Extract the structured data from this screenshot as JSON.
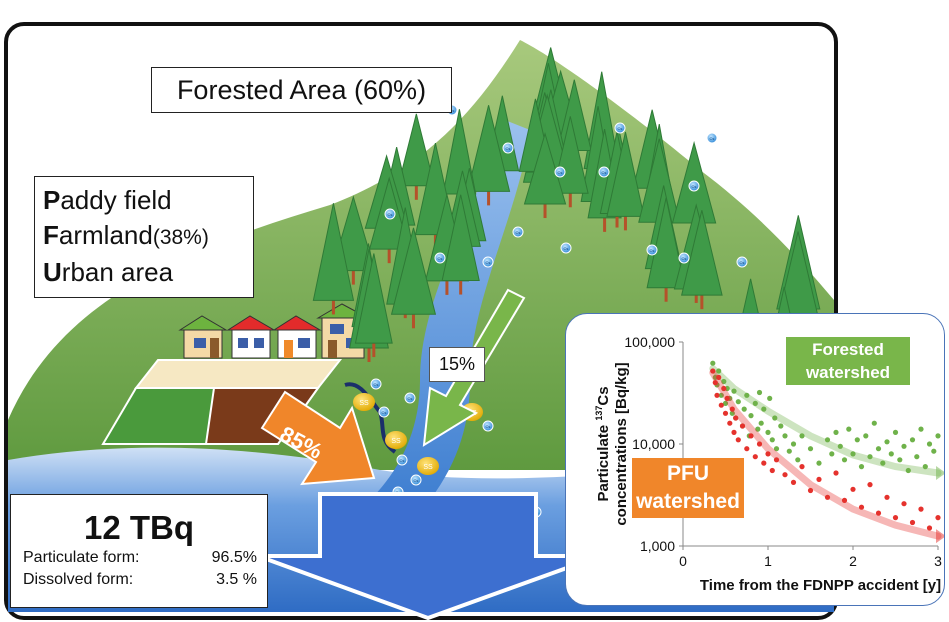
{
  "labels": {
    "forested_area": "Forested Area (60%)",
    "pfu": {
      "line1_initial": "P",
      "line1_rest": "addy field",
      "line2_initial": "F",
      "line2_rest": "armland",
      "line2_pct": "(38%)",
      "line3_initial": "U",
      "line3_rest": "rban area"
    },
    "pct_forest_flow": "15%",
    "pct_pfu_flow": "85%",
    "ss_label": "SS",
    "cs_label": "Cs"
  },
  "total": {
    "value": "12 TBq",
    "particulate_label": "Particulate form:",
    "particulate_value": "96.5%",
    "dissolved_label": "Dissolved form:",
    "dissolved_value": "3.5 %"
  },
  "colors": {
    "forest_tag": "#79b64a",
    "pfu_tag": "#f0862a",
    "water": "#3f7fd1",
    "hill": "#7cab52",
    "tree": "#3f9a48"
  },
  "chart_data": {
    "type": "scatter",
    "xlabel": "Time from the FDNPP accident [y]",
    "ylabel": "Particulate 137Cs concentrations [Bq/kg]",
    "ylabel_line1_pre": "Particulate ",
    "ylabel_sup": "137",
    "ylabel_line1_post": "Cs",
    "ylabel_line2": "concentrations [Bq/kg]",
    "x_ticks": [
      "0",
      "1",
      "2",
      "3"
    ],
    "y_ticks": [
      "1,000",
      "10,000",
      "100,000"
    ],
    "xlim": [
      0,
      3
    ],
    "ylim": [
      1000,
      100000
    ],
    "log_y": true,
    "series": [
      {
        "name": "Forested watershed",
        "name_line1": "Forested",
        "name_line2": "watershed",
        "color": "#6fb24a",
        "trend": [
          [
            0.35,
            55000
          ],
          [
            0.6,
            35000
          ],
          [
            1.0,
            21000
          ],
          [
            1.5,
            12000
          ],
          [
            2.0,
            7800
          ],
          [
            2.5,
            6000
          ],
          [
            3.0,
            5200
          ]
        ],
        "points": [
          [
            0.35,
            62000
          ],
          [
            0.38,
            45000
          ],
          [
            0.4,
            38000
          ],
          [
            0.42,
            52000
          ],
          [
            0.45,
            30000
          ],
          [
            0.48,
            41000
          ],
          [
            0.5,
            25000
          ],
          [
            0.52,
            35000
          ],
          [
            0.55,
            28000
          ],
          [
            0.58,
            20000
          ],
          [
            0.6,
            33000
          ],
          [
            0.62,
            18000
          ],
          [
            0.65,
            26000
          ],
          [
            0.7,
            15000
          ],
          [
            0.72,
            22000
          ],
          [
            0.75,
            30000
          ],
          [
            0.78,
            12000
          ],
          [
            0.8,
            19000
          ],
          [
            0.85,
            25000
          ],
          [
            0.88,
            14000
          ],
          [
            0.9,
            32000
          ],
          [
            0.92,
            16000
          ],
          [
            0.95,
            22000
          ],
          [
            1.0,
            13000
          ],
          [
            1.02,
            28000
          ],
          [
            1.05,
            11000
          ],
          [
            1.08,
            18000
          ],
          [
            1.1,
            9000
          ],
          [
            1.15,
            15000
          ],
          [
            1.2,
            12000
          ],
          [
            1.25,
            8500
          ],
          [
            1.3,
            10000
          ],
          [
            1.35,
            7000
          ],
          [
            1.4,
            12000
          ],
          [
            1.5,
            9000
          ],
          [
            1.6,
            6500
          ],
          [
            1.7,
            11000
          ],
          [
            1.75,
            8000
          ],
          [
            1.8,
            13000
          ],
          [
            1.85,
            9500
          ],
          [
            1.9,
            7000
          ],
          [
            1.95,
            14000
          ],
          [
            2.0,
            8000
          ],
          [
            2.05,
            11000
          ],
          [
            2.1,
            6000
          ],
          [
            2.15,
            12000
          ],
          [
            2.2,
            7500
          ],
          [
            2.25,
            16000
          ],
          [
            2.3,
            9000
          ],
          [
            2.35,
            6500
          ],
          [
            2.4,
            10500
          ],
          [
            2.45,
            8000
          ],
          [
            2.5,
            13000
          ],
          [
            2.55,
            7000
          ],
          [
            2.6,
            9500
          ],
          [
            2.65,
            5500
          ],
          [
            2.7,
            11000
          ],
          [
            2.75,
            7500
          ],
          [
            2.8,
            14000
          ],
          [
            2.85,
            6000
          ],
          [
            2.9,
            10000
          ],
          [
            2.95,
            8500
          ],
          [
            3.0,
            12000
          ]
        ]
      },
      {
        "name": "PFU watershed",
        "name_line1": "PFU",
        "name_line2": "watershed",
        "color": "#e5322d",
        "trend": [
          [
            0.35,
            50000
          ],
          [
            0.6,
            22000
          ],
          [
            1.0,
            9000
          ],
          [
            1.5,
            4000
          ],
          [
            2.0,
            2300
          ],
          [
            2.5,
            1600
          ],
          [
            3.0,
            1250
          ]
        ],
        "points": [
          [
            0.35,
            52000
          ],
          [
            0.38,
            40000
          ],
          [
            0.4,
            30000
          ],
          [
            0.42,
            45000
          ],
          [
            0.45,
            24000
          ],
          [
            0.48,
            35000
          ],
          [
            0.5,
            20000
          ],
          [
            0.52,
            28000
          ],
          [
            0.55,
            16000
          ],
          [
            0.58,
            22000
          ],
          [
            0.6,
            13000
          ],
          [
            0.62,
            18000
          ],
          [
            0.65,
            11000
          ],
          [
            0.7,
            15000
          ],
          [
            0.75,
            9000
          ],
          [
            0.8,
            12000
          ],
          [
            0.85,
            7500
          ],
          [
            0.9,
            10000
          ],
          [
            0.95,
            6500
          ],
          [
            1.0,
            8000
          ],
          [
            1.05,
            5500
          ],
          [
            1.1,
            7000
          ],
          [
            1.2,
            5000
          ],
          [
            1.3,
            4200
          ],
          [
            1.4,
            6000
          ],
          [
            1.5,
            3500
          ],
          [
            1.6,
            4500
          ],
          [
            1.7,
            3000
          ],
          [
            1.8,
            5200
          ],
          [
            1.9,
            2800
          ],
          [
            2.0,
            3600
          ],
          [
            2.1,
            2400
          ],
          [
            2.2,
            4000
          ],
          [
            2.3,
            2100
          ],
          [
            2.4,
            3000
          ],
          [
            2.5,
            1900
          ],
          [
            2.6,
            2600
          ],
          [
            2.7,
            1700
          ],
          [
            2.8,
            2300
          ],
          [
            2.9,
            1500
          ],
          [
            3.0,
            1900
          ]
        ]
      }
    ]
  }
}
